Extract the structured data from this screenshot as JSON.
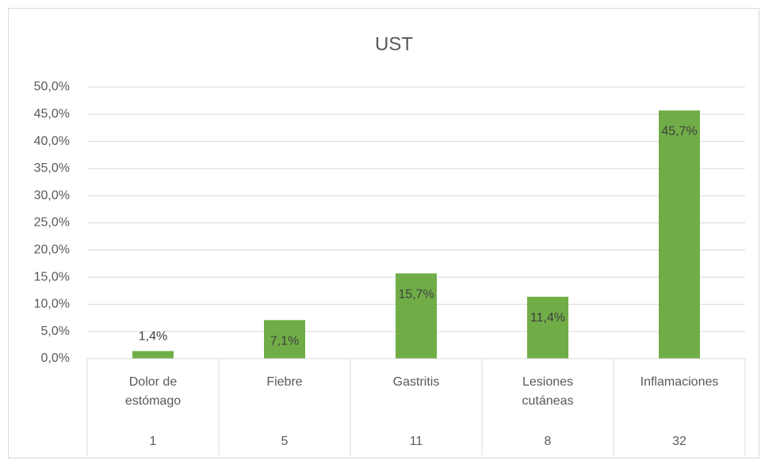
{
  "chart_data": {
    "type": "bar",
    "title": "UST",
    "categories": [
      "Dolor de estómago",
      "Fiebre",
      "Gastritis",
      "Lesiones cutáneas",
      "Inflamaciones"
    ],
    "counts": [
      1,
      5,
      11,
      8,
      32
    ],
    "values": [
      1.4,
      7.1,
      15.7,
      11.4,
      45.7
    ],
    "value_labels": [
      "1,4%",
      "7,1%",
      "15,7%",
      "11,4%",
      "45,7%"
    ],
    "color": "#70ad47",
    "ylim": [
      0,
      50
    ],
    "yticks": [
      {
        "value": 0,
        "label": "0,0%"
      },
      {
        "value": 5,
        "label": "5,0%"
      },
      {
        "value": 10,
        "label": "10,0%"
      },
      {
        "value": 15,
        "label": "15,0%"
      },
      {
        "value": 20,
        "label": "20,0%"
      },
      {
        "value": 25,
        "label": "25,0%"
      },
      {
        "value": 30,
        "label": "30,0%"
      },
      {
        "value": 35,
        "label": "35,0%"
      },
      {
        "value": 40,
        "label": "40,0%"
      },
      {
        "value": 45,
        "label": "45,0%"
      },
      {
        "value": 50,
        "label": "50,0%"
      }
    ],
    "grid": true
  }
}
